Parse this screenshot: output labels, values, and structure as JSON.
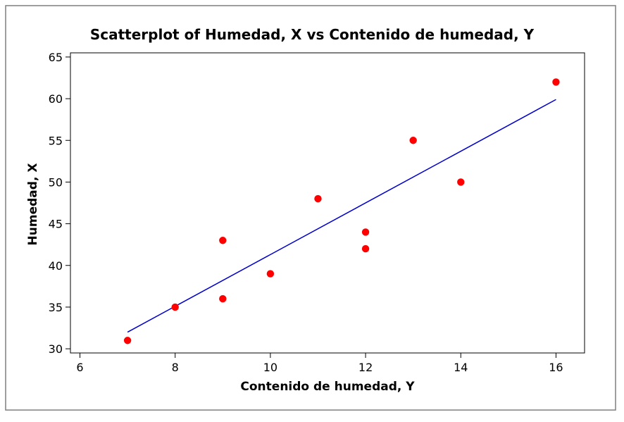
{
  "chart_data": {
    "type": "scatter",
    "title": "Scatterplot of Humedad, X vs Contenido de humedad, Y",
    "xlabel": "Contenido de humedad, Y",
    "ylabel": "Humedad, X",
    "xlim": [
      5.8,
      16.6
    ],
    "ylim": [
      29.5,
      65.5
    ],
    "xticks": [
      6,
      8,
      10,
      12,
      14,
      16
    ],
    "yticks": [
      30,
      35,
      40,
      45,
      50,
      55,
      60,
      65
    ],
    "grid": false,
    "legend": "none",
    "colors": {
      "points": "#ff0000",
      "fit_line": "#0000cc",
      "frame": "#000000"
    },
    "series": [
      {
        "values": [
          {
            "x": 7,
            "y": 31
          },
          {
            "x": 8,
            "y": 35
          },
          {
            "x": 9,
            "y": 36
          },
          {
            "x": 9,
            "y": 43
          },
          {
            "x": 10,
            "y": 39
          },
          {
            "x": 11,
            "y": 48
          },
          {
            "x": 12,
            "y": 42
          },
          {
            "x": 12,
            "y": 44
          },
          {
            "x": 13,
            "y": 55
          },
          {
            "x": 14,
            "y": 50
          },
          {
            "x": 16,
            "y": 62
          }
        ]
      }
    ],
    "fit_line": {
      "x_start": 7,
      "y_start": 32.0,
      "x_end": 16,
      "y_end": 59.9
    }
  }
}
